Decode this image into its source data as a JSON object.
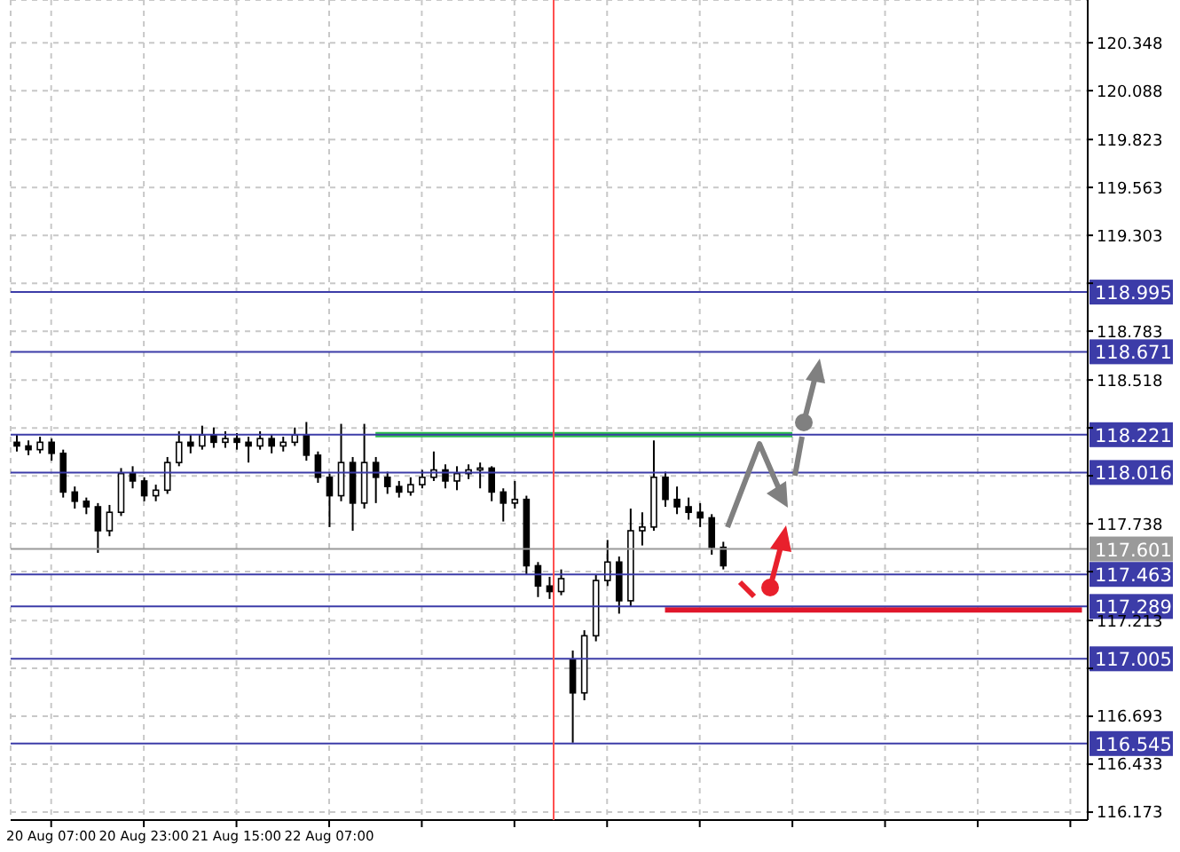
{
  "chart_data": {
    "type": "candlestick",
    "categories": [
      null,
      null,
      null,
      "20 Aug 07:00",
      null,
      null,
      null,
      null,
      null,
      null,
      null,
      "20 Aug 23:00",
      null,
      null,
      null,
      null,
      null,
      null,
      null,
      "21 Aug 15:00",
      null,
      null,
      null,
      null,
      null,
      null,
      null,
      "22 Aug 07:00",
      null,
      null,
      null,
      null,
      null,
      null,
      null,
      null,
      null,
      null,
      null,
      null,
      null,
      null,
      null,
      null,
      null,
      null,
      null,
      null,
      null,
      null,
      null,
      null,
      null,
      null,
      null,
      null,
      null,
      null,
      null,
      null,
      null,
      null,
      null,
      null,
      null,
      null,
      null,
      null,
      null,
      null,
      null,
      null,
      null,
      null,
      null,
      null,
      null,
      null,
      null,
      null,
      null,
      null,
      null,
      null,
      null,
      null,
      null,
      null,
      null,
      null,
      null,
      null,
      null
    ],
    "ohlc": [
      [
        118.18,
        118.22,
        118.13,
        118.16
      ],
      [
        118.16,
        118.19,
        118.11,
        118.14
      ],
      [
        118.14,
        118.21,
        118.12,
        118.18
      ],
      [
        118.18,
        118.2,
        118.08,
        118.12
      ],
      [
        118.12,
        118.14,
        117.88,
        117.91
      ],
      [
        117.91,
        117.94,
        117.82,
        117.86
      ],
      [
        117.86,
        117.88,
        117.79,
        117.83
      ],
      [
        117.83,
        117.85,
        117.58,
        117.7
      ],
      [
        117.7,
        117.84,
        117.67,
        117.8
      ],
      [
        117.8,
        118.04,
        117.78,
        118.01
      ],
      [
        118.01,
        118.05,
        117.93,
        117.97
      ],
      [
        117.97,
        117.99,
        117.86,
        117.89
      ],
      [
        117.89,
        117.95,
        117.86,
        117.92
      ],
      [
        117.92,
        118.1,
        117.9,
        118.07
      ],
      [
        118.07,
        118.24,
        118.05,
        118.18
      ],
      [
        118.18,
        118.22,
        118.12,
        118.16
      ],
      [
        118.16,
        118.27,
        118.14,
        118.22
      ],
      [
        118.22,
        118.26,
        118.15,
        118.18
      ],
      [
        118.18,
        118.24,
        118.15,
        118.2
      ],
      [
        118.2,
        118.23,
        118.14,
        118.18
      ],
      [
        118.18,
        118.21,
        118.07,
        118.16
      ],
      [
        118.16,
        118.24,
        118.14,
        118.2
      ],
      [
        118.2,
        118.22,
        118.12,
        118.16
      ],
      [
        118.16,
        118.21,
        118.13,
        118.18
      ],
      [
        118.18,
        118.26,
        118.16,
        118.22
      ],
      [
        118.22,
        118.29,
        118.08,
        118.11
      ],
      [
        118.11,
        118.13,
        117.96,
        117.99
      ],
      [
        117.99,
        118.01,
        117.72,
        117.89
      ],
      [
        117.89,
        118.28,
        117.86,
        118.07
      ],
      [
        118.07,
        118.1,
        117.7,
        117.85
      ],
      [
        117.85,
        118.28,
        117.82,
        118.07
      ],
      [
        118.07,
        118.1,
        117.85,
        117.99
      ],
      [
        117.99,
        118.02,
        117.9,
        117.94
      ],
      [
        117.94,
        117.97,
        117.88,
        117.91
      ],
      [
        117.91,
        117.99,
        117.89,
        117.95
      ],
      [
        117.95,
        118.03,
        117.93,
        117.99
      ],
      [
        117.99,
        118.13,
        117.97,
        118.03
      ],
      [
        118.03,
        118.06,
        117.93,
        117.97
      ],
      [
        117.97,
        118.05,
        117.92,
        118.01
      ],
      [
        118.01,
        118.06,
        117.98,
        118.03
      ],
      [
        118.03,
        118.07,
        117.93,
        118.04
      ],
      [
        118.04,
        118.05,
        117.86,
        117.91
      ],
      [
        117.91,
        117.93,
        117.75,
        117.85
      ],
      [
        117.85,
        117.97,
        117.82,
        117.87
      ],
      [
        117.87,
        117.89,
        117.46,
        117.51
      ],
      [
        117.51,
        117.53,
        117.34,
        117.4
      ],
      [
        117.4,
        117.45,
        117.33,
        117.37
      ],
      [
        117.37,
        117.49,
        117.35,
        117.44
      ],
      [
        117.0,
        117.05,
        116.55,
        116.82
      ],
      [
        116.82,
        117.16,
        116.78,
        117.13
      ],
      [
        117.13,
        117.46,
        117.1,
        117.43
      ],
      [
        117.43,
        117.65,
        117.4,
        117.53
      ],
      [
        117.53,
        117.56,
        117.25,
        117.32
      ],
      [
        117.32,
        117.82,
        117.29,
        117.7
      ],
      [
        117.7,
        117.8,
        117.62,
        117.72
      ],
      [
        117.72,
        118.19,
        117.7,
        117.99
      ],
      [
        117.99,
        118.02,
        117.83,
        117.87
      ],
      [
        117.87,
        117.94,
        117.79,
        117.83
      ],
      [
        117.83,
        117.88,
        117.76,
        117.8
      ],
      [
        117.8,
        117.85,
        117.72,
        117.77
      ],
      [
        117.77,
        117.79,
        117.57,
        117.61
      ],
      [
        117.61,
        117.64,
        117.49,
        117.51
      ],
      null,
      null,
      null,
      null,
      null,
      null,
      null,
      null,
      null,
      null,
      null,
      null,
      null,
      null,
      null,
      null,
      null,
      null,
      null,
      null,
      null,
      null,
      null,
      null,
      null,
      null,
      null,
      null,
      null,
      null,
      null
    ],
    "series": [
      {
        "type": "line",
        "color": "#2dbb4e",
        "values": [
          null,
          null,
          null,
          null,
          null,
          null,
          null,
          null,
          null,
          null,
          null,
          null,
          null,
          null,
          null,
          null,
          null,
          null,
          null,
          null,
          null,
          null,
          null,
          null,
          null,
          null,
          null,
          null,
          null,
          null,
          null,
          118.221,
          118.221,
          118.221,
          118.221,
          118.221,
          118.221,
          118.221,
          118.221,
          118.221,
          118.221,
          118.221,
          118.221,
          118.221,
          118.221,
          118.221,
          118.221,
          118.221,
          118.221,
          118.221,
          118.221,
          118.221,
          118.221,
          118.221,
          118.221,
          118.221,
          118.221,
          118.221,
          118.221,
          118.221,
          118.221,
          118.221,
          118.221,
          118.221,
          118.221,
          118.221,
          118.221,
          118.221,
          null,
          null,
          null,
          null,
          null,
          null,
          null,
          null,
          null,
          null,
          null,
          null,
          null,
          null,
          null,
          null,
          null,
          null,
          null,
          null,
          null,
          null,
          null,
          null,
          null
        ]
      },
      {
        "type": "line",
        "color": "#e0162b",
        "values": [
          null,
          null,
          null,
          null,
          null,
          null,
          null,
          null,
          null,
          null,
          null,
          null,
          null,
          null,
          null,
          null,
          null,
          null,
          null,
          null,
          null,
          null,
          null,
          null,
          null,
          null,
          null,
          null,
          null,
          null,
          null,
          null,
          null,
          null,
          null,
          null,
          null,
          null,
          null,
          null,
          null,
          null,
          null,
          null,
          null,
          null,
          null,
          null,
          null,
          null,
          null,
          null,
          null,
          null,
          null,
          null,
          117.27,
          117.27,
          117.27,
          117.27,
          117.27,
          117.27,
          117.27,
          117.27,
          117.27,
          117.27,
          117.27,
          117.27,
          117.27,
          117.27,
          117.27,
          117.27,
          117.27,
          117.27,
          117.27,
          117.27,
          117.27,
          117.27,
          117.27,
          117.27,
          117.27,
          117.27,
          117.27,
          117.27,
          117.27,
          117.27,
          117.27,
          117.27,
          117.27,
          117.27,
          117.27,
          117.27,
          117.27
        ]
      }
    ],
    "ylim": [
      116.13,
      120.58
    ],
    "yticks": [
      120.348,
      120.088,
      119.823,
      119.563,
      119.303,
      {
        "value": 119.043,
        "label": null
      },
      118.783,
      118.518,
      {
        "value": 118.258,
        "label": null
      },
      {
        "value": 117.998,
        "label": null
      },
      117.738,
      {
        "value": 117.478,
        "label": null
      },
      117.213,
      {
        "value": 116.953,
        "label": null
      },
      116.693,
      116.433,
      116.173
    ],
    "grid": true,
    "ref_lines": [
      {
        "axis": "y",
        "value": 118.995,
        "label": "118.995",
        "color": "#3c3ca8"
      },
      {
        "axis": "y",
        "value": 118.671,
        "label": "118.671",
        "color": "#3c3ca8"
      },
      {
        "axis": "y",
        "value": 118.221,
        "label": "118.221",
        "color": "#3c3ca8"
      },
      {
        "axis": "y",
        "value": 118.016,
        "label": "118.016",
        "color": "#3c3ca8"
      },
      {
        "axis": "y",
        "value": 117.601,
        "label": "117.601",
        "color": "#9a9a9a"
      },
      {
        "axis": "y",
        "value": 117.463,
        "label": "117.463",
        "color": "#3c3ca8"
      },
      {
        "axis": "y",
        "value": 117.289,
        "label": "117.289",
        "color": "#3c3ca8"
      },
      {
        "axis": "y",
        "value": 117.005,
        "label": "117.005",
        "color": "#3c3ca8"
      },
      {
        "axis": "y",
        "value": 116.545,
        "label": "116.545",
        "color": "#3c3ca8"
      }
    ]
  }
}
